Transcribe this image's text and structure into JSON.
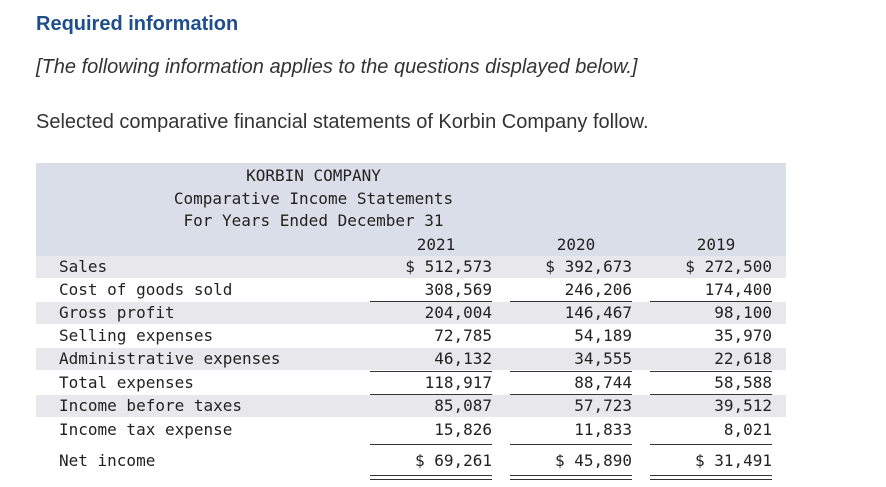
{
  "required": {
    "title": "Required information",
    "note": "[The following information applies to the questions displayed below.]"
  },
  "intro": "Selected comparative financial statements of Korbin Company follow.",
  "statement": {
    "company": "KORBIN COMPANY",
    "subtitle": "Comparative Income Statements",
    "period": "For Years Ended December 31",
    "years": [
      "2021",
      "2020",
      "2019"
    ],
    "rows": [
      {
        "label": "Sales",
        "values": [
          "$ 512,573",
          "$ 392,673",
          "$ 272,500"
        ]
      },
      {
        "label": "Cost of goods sold",
        "values": [
          "308,569",
          "246,206",
          "174,400"
        ]
      },
      {
        "label": "Gross profit",
        "values": [
          "204,004",
          "146,467",
          "98,100"
        ]
      },
      {
        "label": "Selling expenses",
        "values": [
          "72,785",
          "54,189",
          "35,970"
        ]
      },
      {
        "label": "Administrative expenses",
        "values": [
          "46,132",
          "34,555",
          "22,618"
        ]
      },
      {
        "label": "Total expenses",
        "values": [
          "118,917",
          "88,744",
          "58,588"
        ]
      },
      {
        "label": "Income before taxes",
        "values": [
          "85,087",
          "57,723",
          "39,512"
        ]
      },
      {
        "label": "Income tax expense",
        "values": [
          "15,826",
          "11,833",
          "8,021"
        ]
      },
      {
        "label": "Net income",
        "values": [
          "$ 69,261",
          "$ 45,890",
          "$ 31,491"
        ]
      }
    ]
  }
}
